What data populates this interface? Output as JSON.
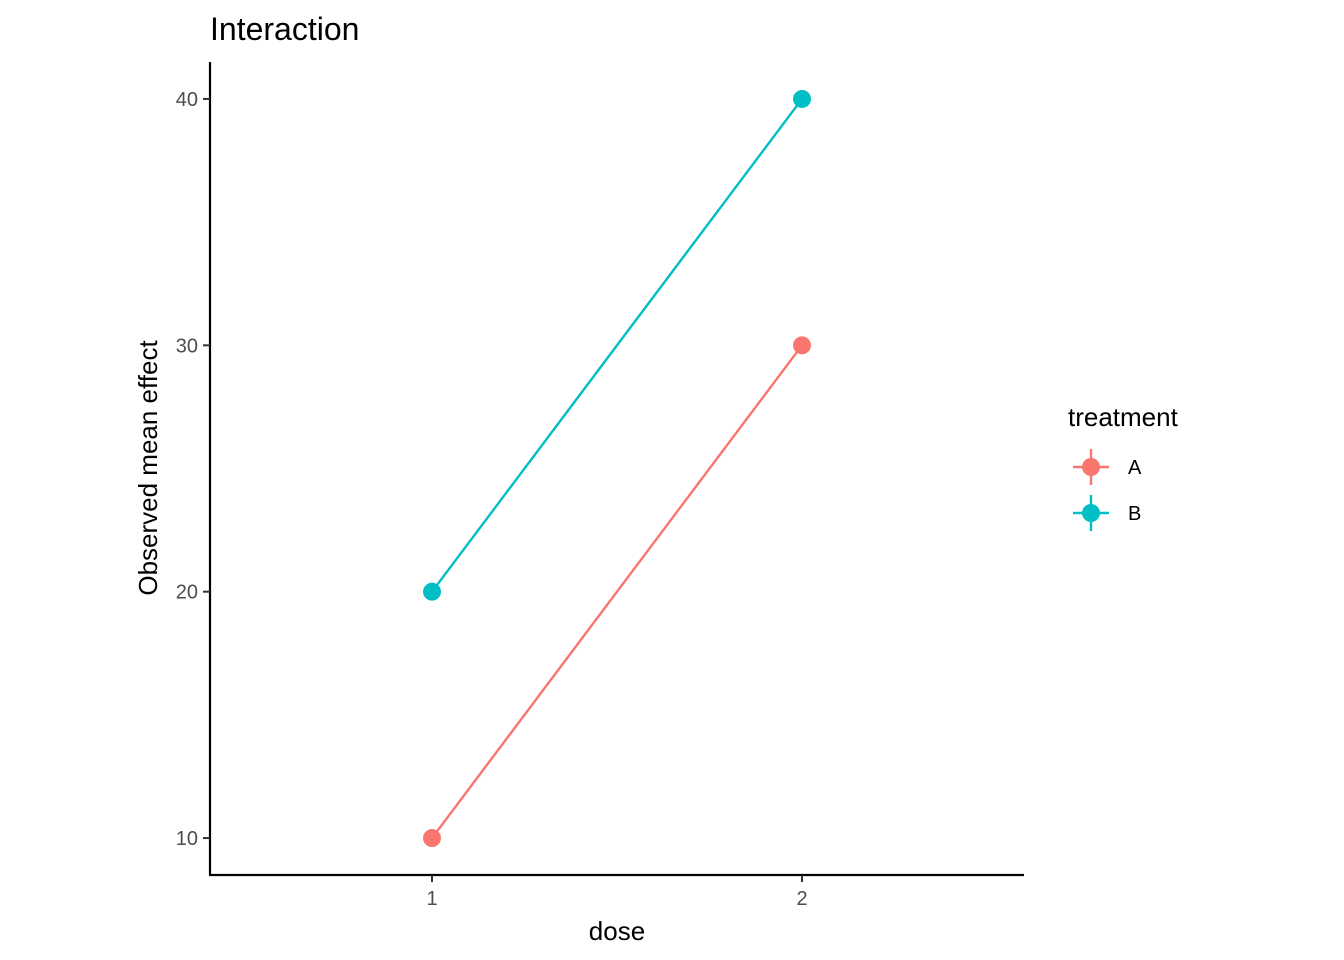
{
  "chart_data": {
    "type": "line",
    "title": "Interaction",
    "xlabel": "dose",
    "ylabel": "Observed mean effect",
    "x": [
      1,
      2
    ],
    "x_tick_labels": [
      "1",
      "2"
    ],
    "y_ticks": [
      10,
      20,
      30,
      40
    ],
    "xlim": [
      0.4,
      2.6
    ],
    "ylim": [
      8.5,
      41.5
    ],
    "grid": false,
    "legend": {
      "title": "treatment",
      "position": "right"
    },
    "series": [
      {
        "name": "A",
        "color": "#F8766D",
        "values": [
          10,
          30
        ]
      },
      {
        "name": "B",
        "color": "#00BFC4",
        "values": [
          20,
          40
        ]
      }
    ]
  }
}
